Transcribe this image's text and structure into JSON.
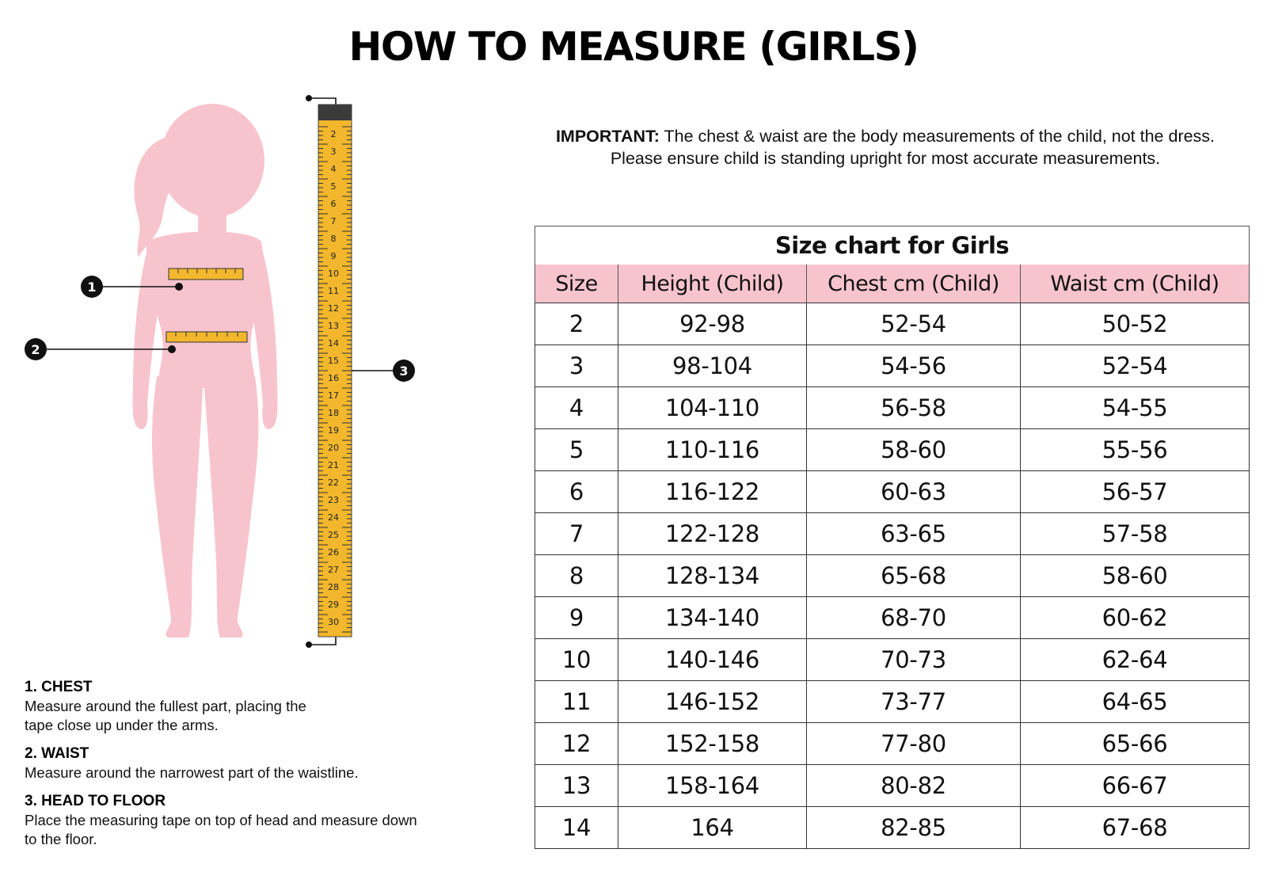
{
  "page": {
    "title": "HOW TO MEASURE (GIRLS)",
    "important_label": "IMPORTANT:",
    "important_line1": " The chest & waist are the body measurements of the child, not the dress.",
    "important_line2": "Please ensure child is standing upright for most accurate measurements."
  },
  "figure": {
    "markers": [
      "1",
      "2",
      "3"
    ],
    "tape_numbers": [
      "2",
      "3",
      "4",
      "5",
      "6",
      "7",
      "8",
      "9",
      "10",
      "11",
      "12",
      "13",
      "14",
      "15",
      "16",
      "17",
      "18",
      "19",
      "20",
      "21",
      "22",
      "23",
      "24",
      "25",
      "26",
      "27",
      "28",
      "29",
      "30"
    ],
    "colors": {
      "silhouette": "#f7c4cd",
      "tape": "#f2b72c",
      "marker": "#111111"
    }
  },
  "instructions": [
    {
      "heading": "1. CHEST",
      "text": "Measure around the fullest part, placing the\ntape close up under the arms."
    },
    {
      "heading": "2. WAIST",
      "text": "Measure around the narrowest part of the waistline."
    },
    {
      "heading": "3. HEAD TO FLOOR",
      "text": "Place the measuring tape on top of head and measure down\nto the floor."
    }
  ],
  "size_chart": {
    "title": "Size chart for Girls",
    "header_color": "#f7c4cd",
    "columns": [
      "Size",
      "Height (Child)",
      "Chest cm (Child)",
      "Waist cm (Child)"
    ],
    "rows": [
      [
        "2",
        "92-98",
        "52-54",
        "50-52"
      ],
      [
        "3",
        "98-104",
        "54-56",
        "52-54"
      ],
      [
        "4",
        "104-110",
        "56-58",
        "54-55"
      ],
      [
        "5",
        "110-116",
        "58-60",
        "55-56"
      ],
      [
        "6",
        "116-122",
        "60-63",
        "56-57"
      ],
      [
        "7",
        "122-128",
        "63-65",
        "57-58"
      ],
      [
        "8",
        "128-134",
        "65-68",
        "58-60"
      ],
      [
        "9",
        "134-140",
        "68-70",
        "60-62"
      ],
      [
        "10",
        "140-146",
        "70-73",
        "62-64"
      ],
      [
        "11",
        "146-152",
        "73-77",
        "64-65"
      ],
      [
        "12",
        "152-158",
        "77-80",
        "65-66"
      ],
      [
        "13",
        "158-164",
        "80-82",
        "66-67"
      ],
      [
        "14",
        "164",
        "82-85",
        "67-68"
      ]
    ]
  }
}
